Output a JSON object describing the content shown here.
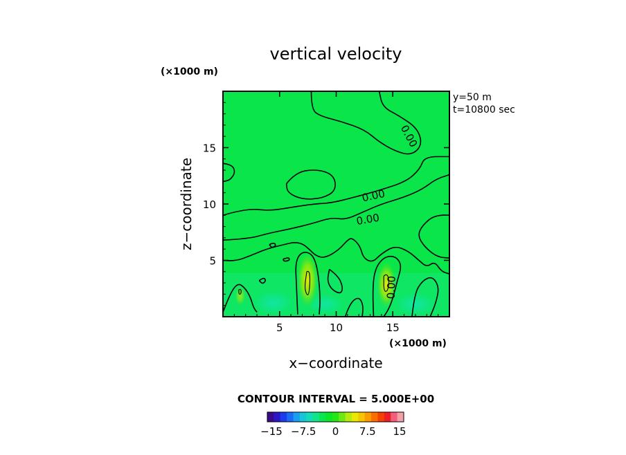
{
  "chart_data": {
    "type": "heatmap",
    "title": "vertical velocity",
    "xlabel": "x−coordinate",
    "ylabel": "z−coordinate",
    "x_unit": "(×1000 m)",
    "y_unit": "(×1000 m)",
    "xlim": [
      0,
      20
    ],
    "ylim": [
      0,
      20
    ],
    "x_ticks": [
      5,
      10,
      15
    ],
    "y_ticks": [
      5,
      10,
      15
    ],
    "x_tick_labels": [
      "5",
      "10",
      "15"
    ],
    "y_tick_labels": [
      "5",
      "10",
      "15"
    ],
    "info_lines": [
      "y=50  m",
      "t=10800 sec"
    ],
    "contour_interval_text": "CONTOUR INTERVAL = 5.000E+00",
    "contour_interval": 5,
    "contour_labels": [
      {
        "text": "0.00",
        "x": 16.4,
        "y": 16.0,
        "angle": 62
      },
      {
        "text": "0.00",
        "x": 13.3,
        "y": 10.7,
        "angle": -12
      },
      {
        "text": "0.00",
        "x": 12.8,
        "y": 8.6,
        "angle": -10
      },
      {
        "text": "0.00",
        "x": 14.9,
        "y": 2.6,
        "angle": -88
      }
    ],
    "contours": [
      {
        "level": 0,
        "points": [
          [
            7.8,
            20
          ],
          [
            7.8,
            18.4
          ],
          [
            8.6,
            17.8
          ],
          [
            10.5,
            17.3
          ],
          [
            12.5,
            16.6
          ],
          [
            13.8,
            15.5
          ],
          [
            15.2,
            14.7
          ],
          [
            16.6,
            14.3
          ],
          [
            17.6,
            15.2
          ],
          [
            17.2,
            16.7
          ],
          [
            15.6,
            17.8
          ],
          [
            14.1,
            18.6
          ],
          [
            13.8,
            20
          ]
        ]
      },
      {
        "level": 0,
        "points": [
          [
            0,
            13.6
          ],
          [
            0.8,
            13.5
          ],
          [
            1.1,
            12.8
          ],
          [
            0.6,
            12.1
          ],
          [
            0,
            12.0
          ]
        ]
      },
      {
        "level": 0,
        "points": [
          [
            5.6,
            11.8
          ],
          [
            6.4,
            12.8
          ],
          [
            8.2,
            13.1
          ],
          [
            9.8,
            12.6
          ],
          [
            10.0,
            11.2
          ],
          [
            8.8,
            10.5
          ],
          [
            7.0,
            10.4
          ],
          [
            5.7,
            11.0
          ],
          [
            5.6,
            11.8
          ]
        ]
      },
      {
        "level": 0,
        "points": [
          [
            0,
            9.0
          ],
          [
            2.0,
            9.6
          ],
          [
            4.2,
            9.4
          ],
          [
            6.0,
            9.7
          ],
          [
            8.0,
            10.0
          ],
          [
            9.6,
            10.1
          ],
          [
            11.6,
            10.6
          ],
          [
            13.8,
            11.2
          ],
          [
            16.2,
            12.0
          ],
          [
            17.4,
            13.1
          ],
          [
            17.8,
            14.2
          ],
          [
            20,
            14.2
          ]
        ]
      },
      {
        "level": 0,
        "points": [
          [
            0,
            6.8
          ],
          [
            2.2,
            6.9
          ],
          [
            4.0,
            7.4
          ],
          [
            6.0,
            7.8
          ],
          [
            8.0,
            8.3
          ],
          [
            9.6,
            8.8
          ],
          [
            10.8,
            8.6
          ],
          [
            12.4,
            9.3
          ],
          [
            14.0,
            10.0
          ],
          [
            16.0,
            10.6
          ],
          [
            17.6,
            11.3
          ],
          [
            18.8,
            12.2
          ],
          [
            20,
            12.6
          ]
        ]
      },
      {
        "level": 0,
        "points": [
          [
            20,
            9.0
          ],
          [
            18.8,
            9.1
          ],
          [
            17.6,
            8.1
          ],
          [
            17.2,
            7.2
          ],
          [
            17.8,
            6.2
          ],
          [
            18.9,
            5.3
          ],
          [
            20,
            5.2
          ]
        ]
      },
      {
        "level": 0,
        "points": [
          [
            0,
            5.0
          ],
          [
            1.0,
            4.9
          ],
          [
            2.4,
            5.4
          ],
          [
            3.8,
            6.0
          ],
          [
            5.4,
            6.4
          ],
          [
            6.2,
            6.6
          ],
          [
            7.0,
            6.5
          ],
          [
            7.6,
            6.0
          ],
          [
            8.2,
            5.4
          ],
          [
            9.0,
            5.2
          ],
          [
            10.2,
            5.9
          ],
          [
            11.0,
            6.8
          ],
          [
            11.4,
            7.0
          ],
          [
            12.1,
            6.3
          ],
          [
            12.4,
            5.2
          ],
          [
            13.2,
            4.8
          ],
          [
            14.0,
            5.6
          ],
          [
            15.2,
            6.3
          ],
          [
            16.4,
            5.8
          ],
          [
            17.3,
            5.0
          ],
          [
            18.0,
            4.4
          ],
          [
            18.7,
            4.9
          ],
          [
            19.3,
            4.0
          ],
          [
            20,
            3.8
          ]
        ]
      },
      {
        "level": 0,
        "points": [
          [
            0,
            0.4
          ],
          [
            0.6,
            2.0
          ],
          [
            1.3,
            3.0
          ],
          [
            1.9,
            2.6
          ],
          [
            2.4,
            1.8
          ],
          [
            2.7,
            0.8
          ],
          [
            3.0,
            0.4
          ]
        ]
      },
      {
        "level": 0,
        "points": [
          [
            6.6,
            0.2
          ],
          [
            6.5,
            2.6
          ],
          [
            6.4,
            4.6
          ],
          [
            6.7,
            5.5
          ],
          [
            7.3,
            5.8
          ],
          [
            8.0,
            5.4
          ],
          [
            8.4,
            4.0
          ],
          [
            8.6,
            1.6
          ],
          [
            8.5,
            0.2
          ]
        ]
      },
      {
        "level": 0,
        "points": [
          [
            9.4,
            4.2
          ],
          [
            10.2,
            3.6
          ],
          [
            10.6,
            2.6
          ],
          [
            10.4,
            2.0
          ],
          [
            9.6,
            2.4
          ],
          [
            9.2,
            3.2
          ],
          [
            9.4,
            4.2
          ]
        ]
      },
      {
        "level": 0,
        "points": [
          [
            10.8,
            0
          ],
          [
            11.2,
            1.2
          ],
          [
            12.0,
            1.8
          ],
          [
            12.4,
            1.0
          ],
          [
            12.3,
            0
          ]
        ]
      },
      {
        "level": 0,
        "points": [
          [
            13.3,
            0
          ],
          [
            13.2,
            2.2
          ],
          [
            13.4,
            4.2
          ],
          [
            14.2,
            5.3
          ],
          [
            15.2,
            5.4
          ],
          [
            15.8,
            4.6
          ],
          [
            15.4,
            3.2
          ],
          [
            15.0,
            1.6
          ],
          [
            14.6,
            0.6
          ],
          [
            14.2,
            0
          ]
        ]
      },
      {
        "level": 0,
        "points": [
          [
            16.7,
            0
          ],
          [
            16.9,
            2.0
          ],
          [
            17.6,
            3.2
          ],
          [
            18.5,
            3.6
          ],
          [
            19.1,
            2.6
          ],
          [
            18.8,
            1.2
          ],
          [
            18.3,
            0
          ]
        ]
      },
      {
        "level": 0,
        "points": [
          [
            3.2,
            3.2
          ],
          [
            3.6,
            3.5
          ],
          [
            3.8,
            3.2
          ],
          [
            3.5,
            2.9
          ],
          [
            3.2,
            3.2
          ]
        ]
      },
      {
        "level": 0,
        "points": [
          [
            4.1,
            6.4
          ],
          [
            4.5,
            6.6
          ],
          [
            4.7,
            6.3
          ],
          [
            4.3,
            6.1
          ],
          [
            4.1,
            6.4
          ]
        ]
      },
      {
        "level": 0,
        "points": [
          [
            5.3,
            5.1
          ],
          [
            5.8,
            5.3
          ],
          [
            5.9,
            5.0
          ],
          [
            5.4,
            4.9
          ],
          [
            5.3,
            5.1
          ]
        ]
      },
      {
        "level": 5,
        "points": [
          [
            7.4,
            4.0
          ],
          [
            7.6,
            4.1
          ],
          [
            7.7,
            3.4
          ],
          [
            7.6,
            2.0
          ],
          [
            7.4,
            1.9
          ],
          [
            7.2,
            2.6
          ],
          [
            7.4,
            4.0
          ]
        ]
      },
      {
        "level": 5,
        "points": [
          [
            14.2,
            3.6
          ],
          [
            14.5,
            3.9
          ],
          [
            14.7,
            3.0
          ],
          [
            14.5,
            2.2
          ],
          [
            14.2,
            2.3
          ],
          [
            14.2,
            3.6
          ]
        ]
      },
      {
        "level": 5,
        "points": [
          [
            1.4,
            2.4
          ],
          [
            1.6,
            2.5
          ],
          [
            1.6,
            2.0
          ],
          [
            1.4,
            2.0
          ],
          [
            1.4,
            2.4
          ]
        ]
      }
    ],
    "colorbar": {
      "tick_labels": [
        "−15",
        "−7.5",
        "0",
        "7.5",
        "15"
      ],
      "tick_values": [
        -15,
        -7.5,
        0,
        7.5,
        15
      ],
      "colors": [
        "#3a0a8a",
        "#2b18c4",
        "#1c3cf0",
        "#1a6cf2",
        "#1a9ef4",
        "#16c6d6",
        "#12dcb6",
        "#0fe68c",
        "#0ae650",
        "#0ce628",
        "#26e618",
        "#6de812",
        "#b6ea0e",
        "#e8e800",
        "#f6c400",
        "#fa9c00",
        "#fa7000",
        "#f44000",
        "#ec1c28",
        "#f0607a",
        "#f4a0a8"
      ]
    }
  }
}
